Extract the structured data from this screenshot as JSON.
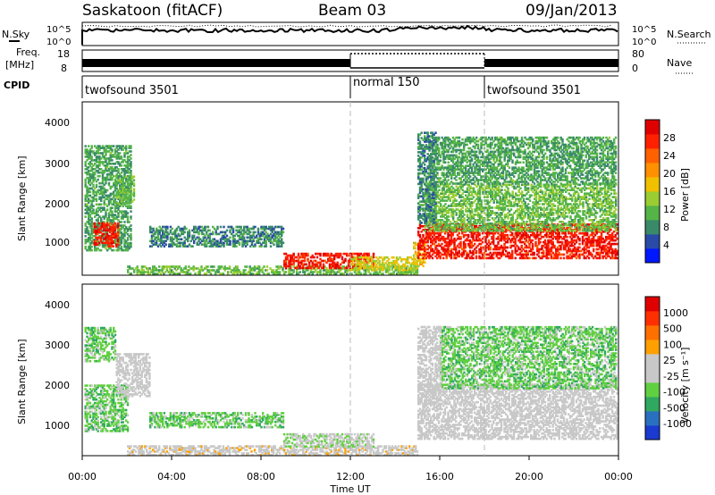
{
  "header": {
    "station": "Saskatoon (fitACF)",
    "beam": "Beam 03",
    "date": "09/Jan/2013"
  },
  "strip_panels": {
    "nsky_label": "N.Sky",
    "nsky_ticks": [
      "10^5",
      "10^0"
    ],
    "nsearch_label": "N.Search",
    "nsearch_ticks": [
      "10^5",
      "10^0"
    ],
    "freq_label": "Freq.",
    "freq_unit": "[MHz]",
    "freq_ticks": [
      "18",
      "8"
    ],
    "nave_label": "Nave",
    "nave_ticks": [
      "80",
      "0"
    ],
    "cpid_label": "CPID",
    "cpid_segments": [
      {
        "name": "twofsound 3501",
        "start": 0,
        "end": 12
      },
      {
        "name": "normal 150",
        "start": 12,
        "end": 18
      },
      {
        "name": "twofsound 3501",
        "start": 18,
        "end": 24
      }
    ]
  },
  "x_axis": {
    "label": "Time UT",
    "ticks": [
      "00:00",
      "04:00",
      "08:00",
      "12:00",
      "16:00",
      "20:00",
      "00:00"
    ]
  },
  "power_panel": {
    "ylabel": "Slant Range [km]",
    "yticks": [
      "4000",
      "3000",
      "2000",
      "1000"
    ],
    "colorbar_label": "Power [dB]",
    "colorbar_ticks": [
      "28",
      "24",
      "20",
      "16",
      "12",
      "8",
      "4"
    ],
    "colors": [
      "#0018ff",
      "#2a4aa8",
      "#3a8a6a",
      "#54b448",
      "#9acd32",
      "#f0c000",
      "#ff9000",
      "#ff6000",
      "#ff2000",
      "#e00000"
    ]
  },
  "velocity_panel": {
    "ylabel": "Slant Range [km]",
    "yticks": [
      "4000",
      "3000",
      "2000",
      "1000"
    ],
    "colorbar_label": "Velocity [m s⁻¹]",
    "colorbar_ticks": [
      "1000",
      "500",
      "100",
      "25",
      "-25",
      "-100",
      "-500",
      "-1000"
    ],
    "colors": [
      "#1a3ad0",
      "#2a70c0",
      "#30a860",
      "#60d040",
      "#c8c8c8",
      "#c8c8c8",
      "#ffa000",
      "#ff7000",
      "#ff3000",
      "#e00000"
    ]
  },
  "chart_data": [
    {
      "type": "heatmap",
      "title": "Power [dB]",
      "xlabel": "Time UT",
      "ylabel": "Slant Range [km]",
      "xlim": [
        0,
        24
      ],
      "ylim": [
        180,
        4600
      ],
      "colorbar_range": [
        0,
        32
      ],
      "regions": [
        {
          "t": [
            0.1,
            2.2
          ],
          "r": [
            800,
            3500
          ],
          "value": 10
        },
        {
          "t": [
            0.5,
            1.6
          ],
          "r": [
            900,
            1500
          ],
          "value": 28
        },
        {
          "t": [
            1.5,
            2.3
          ],
          "r": [
            2000,
            2700
          ],
          "value": 12
        },
        {
          "t": [
            3.0,
            9.0
          ],
          "r": [
            900,
            1400
          ],
          "value": 8
        },
        {
          "t": [
            2.0,
            15.0
          ],
          "r": [
            200,
            400
          ],
          "value": 12
        },
        {
          "t": [
            9.0,
            13.0
          ],
          "r": [
            350,
            750
          ],
          "value": 28
        },
        {
          "t": [
            12.0,
            15.0
          ],
          "r": [
            300,
            650
          ],
          "value": 16
        },
        {
          "t": [
            14.8,
            15.3
          ],
          "r": [
            400,
            1000
          ],
          "value": 18
        },
        {
          "t": [
            15.0,
            23.9
          ],
          "r": [
            600,
            1500
          ],
          "value": 28
        },
        {
          "t": [
            15.3,
            23.9
          ],
          "r": [
            1300,
            2500
          ],
          "value": 12
        },
        {
          "t": [
            15.5,
            23.9
          ],
          "r": [
            2500,
            3700
          ],
          "value": 10
        },
        {
          "t": [
            15.0,
            15.8
          ],
          "r": [
            1500,
            3800
          ],
          "value": 8
        }
      ]
    },
    {
      "type": "heatmap",
      "title": "Velocity [m s⁻¹]",
      "xlabel": "Time UT",
      "ylabel": "Slant Range [km]",
      "xlim": [
        0,
        24
      ],
      "ylim": [
        180,
        4600
      ],
      "colorbar_range": [
        -1000,
        1000
      ],
      "regions": [
        {
          "t": [
            0.1,
            2.0
          ],
          "r": [
            800,
            2000
          ],
          "value": -300
        },
        {
          "t": [
            0.1,
            1.5
          ],
          "r": [
            2600,
            3500
          ],
          "value": -300
        },
        {
          "t": [
            1.5,
            3.0
          ],
          "r": [
            1700,
            2800
          ],
          "value": 0
        },
        {
          "t": [
            3.0,
            9.0
          ],
          "r": [
            900,
            1300
          ],
          "value": -300
        },
        {
          "t": [
            2.0,
            15.0
          ],
          "r": [
            180,
            450
          ],
          "value": 80
        },
        {
          "t": [
            9.0,
            13.0
          ],
          "r": [
            400,
            750
          ],
          "value": -150
        },
        {
          "t": [
            15.0,
            23.9
          ],
          "r": [
            600,
            2000
          ],
          "value": 0
        },
        {
          "t": [
            16.0,
            23.9
          ],
          "r": [
            1900,
            3500
          ],
          "value": -300
        },
        {
          "t": [
            15.0,
            16.0
          ],
          "r": [
            1500,
            3500
          ],
          "value": 0
        }
      ]
    }
  ]
}
